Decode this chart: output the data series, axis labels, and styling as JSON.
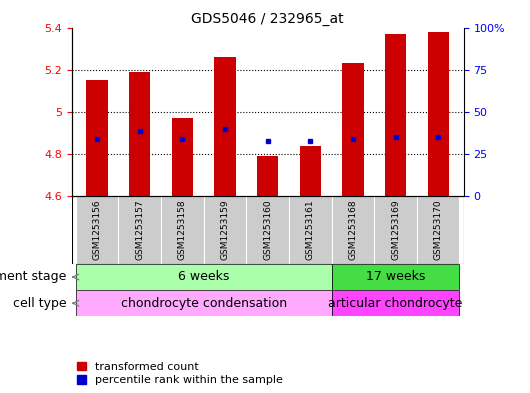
{
  "title": "GDS5046 / 232965_at",
  "samples": [
    "GSM1253156",
    "GSM1253157",
    "GSM1253158",
    "GSM1253159",
    "GSM1253160",
    "GSM1253161",
    "GSM1253168",
    "GSM1253169",
    "GSM1253170"
  ],
  "bar_values": [
    5.15,
    5.19,
    4.97,
    5.26,
    4.79,
    4.84,
    5.23,
    5.37,
    5.38
  ],
  "bar_bottom": 4.6,
  "percentile_values": [
    4.87,
    4.91,
    4.87,
    4.92,
    4.86,
    4.86,
    4.87,
    4.88,
    4.88
  ],
  "ylim": [
    4.6,
    5.4
  ],
  "yticks_left": [
    4.6,
    4.8,
    5.0,
    5.2,
    5.4
  ],
  "yticks_right": [
    0,
    25,
    50,
    75,
    100
  ],
  "bar_color": "#CC0000",
  "percentile_color": "#0000CC",
  "bg_color": "#FFFFFF",
  "plot_bg": "#FFFFFF",
  "dev_stage_groups": [
    {
      "label": "6 weeks",
      "start": 0,
      "end": 6,
      "color": "#AAFFAA"
    },
    {
      "label": "17 weeks",
      "start": 6,
      "end": 9,
      "color": "#44DD44"
    }
  ],
  "cell_type_groups": [
    {
      "label": "chondrocyte condensation",
      "start": 0,
      "end": 6,
      "color": "#FFAAFF"
    },
    {
      "label": "articular chondrocyte",
      "start": 6,
      "end": 9,
      "color": "#FF44FF"
    }
  ],
  "legend_bar_label": "transformed count",
  "legend_pct_label": "percentile rank within the sample",
  "dev_stage_label": "development stage",
  "cell_type_label": "cell type",
  "title_fontsize": 10,
  "tick_fontsize": 8,
  "label_fontsize": 9,
  "annot_fontsize": 9,
  "bar_width": 0.5
}
